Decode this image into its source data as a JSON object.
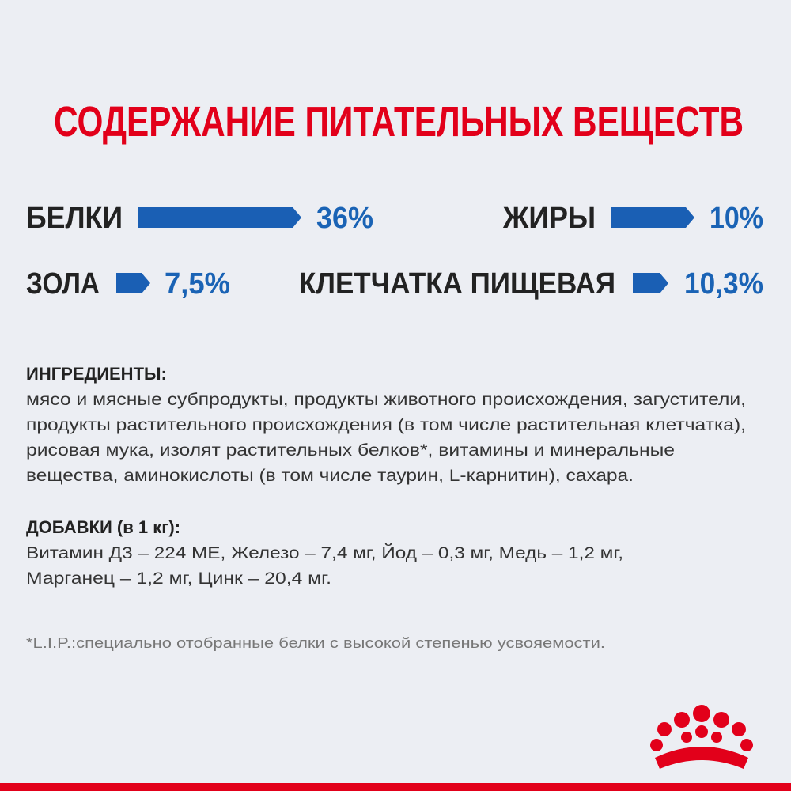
{
  "header": {
    "title": "СОДЕРЖАНИЕ ПИТАТЕЛЬНЫХ ВЕЩЕСТВ"
  },
  "nutrients": [
    {
      "name": "БЕЛКИ",
      "value": "36%"
    },
    {
      "name": "ЖИРЫ",
      "value": "10%"
    },
    {
      "name": "ЗОЛА",
      "value": "7,5%"
    },
    {
      "name": "КЛЕТЧАТКА ПИЩЕВАЯ",
      "value": "10,3%"
    }
  ],
  "ingredients": {
    "heading": "ИНГРЕДИЕНТЫ:",
    "lines": [
      "мясо и мясные субпродукты, продукты животного происхождения, загустители,",
      "продукты растительного происхождения (в том числе растительная клетчатка),",
      "рисовая мука, изолят растительных белков*, витамины и минеральные",
      "вещества, аминокислоты (в том числе таурин, L-карнитин), сахара."
    ]
  },
  "additives": {
    "heading": "ДОБАВКИ (в 1 кг):",
    "lines": [
      "Витамин Д3 – 224 МЕ, Железо – 7,4 мг, Йод – 0,3 мг, Медь – 1,2 мг,",
      "Марганец – 1,2 мг, Цинк – 20,4 мг."
    ]
  },
  "footnote": "*L.I.P.:специально отобранные белки с высокой степенью усвояемости."
}
